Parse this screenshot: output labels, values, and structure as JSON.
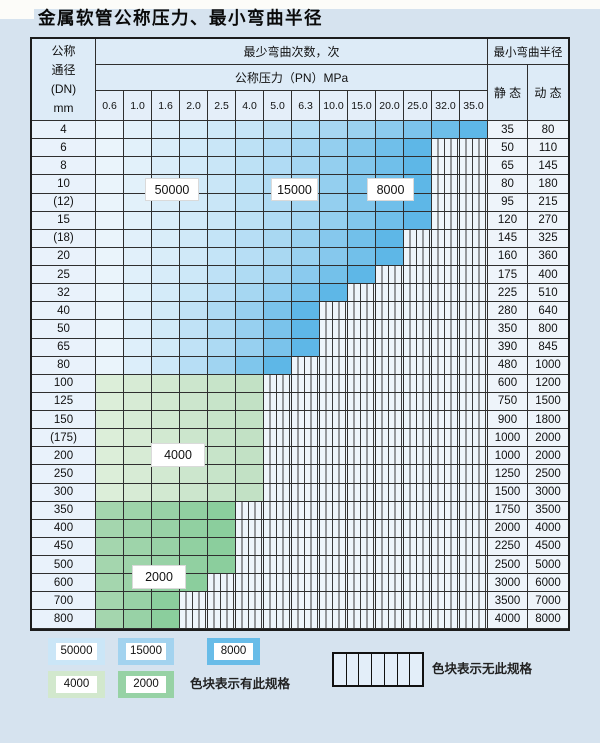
{
  "page_title": "金属软管公称压力、最小弯曲半径",
  "table": {
    "header": {
      "dn_lines": [
        "公称",
        "通径",
        "(DN)",
        "mm"
      ],
      "bend_cycles": "最少弯曲次数，次",
      "pressure": "公称压力（PN）MPa",
      "radius": "最小弯曲半径",
      "static": "静 态",
      "dynamic": "动 态"
    },
    "pn_columns": [
      "0.6",
      "1.0",
      "1.6",
      "2.0",
      "2.5",
      "4.0",
      "5.0",
      "6.3",
      "10.0",
      "15.0",
      "20.0",
      "25.0",
      "32.0",
      "35.0"
    ],
    "rows": [
      {
        "dn": "4",
        "max_pn": "35.0",
        "zone": "blue",
        "static": "35",
        "dynamic": "80"
      },
      {
        "dn": "6",
        "max_pn": "25.0",
        "zone": "blue",
        "static": "50",
        "dynamic": "110"
      },
      {
        "dn": "8",
        "max_pn": "25.0",
        "zone": "blue",
        "static": "65",
        "dynamic": "145"
      },
      {
        "dn": "10",
        "max_pn": "25.0",
        "zone": "blue",
        "static": "80",
        "dynamic": "180"
      },
      {
        "dn": "(12)",
        "max_pn": "25.0",
        "zone": "blue",
        "static": "95",
        "dynamic": "215"
      },
      {
        "dn": "15",
        "max_pn": "25.0",
        "zone": "blue",
        "static": "120",
        "dynamic": "270"
      },
      {
        "dn": "(18)",
        "max_pn": "20.0",
        "zone": "blue",
        "static": "145",
        "dynamic": "325"
      },
      {
        "dn": "20",
        "max_pn": "20.0",
        "zone": "blue",
        "static": "160",
        "dynamic": "360"
      },
      {
        "dn": "25",
        "max_pn": "15.0",
        "zone": "blue",
        "static": "175",
        "dynamic": "400"
      },
      {
        "dn": "32",
        "max_pn": "10.0",
        "zone": "blue",
        "static": "225",
        "dynamic": "510"
      },
      {
        "dn": "40",
        "max_pn": "6.3",
        "zone": "blue",
        "static": "280",
        "dynamic": "640"
      },
      {
        "dn": "50",
        "max_pn": "6.3",
        "zone": "blue",
        "static": "350",
        "dynamic": "800"
      },
      {
        "dn": "65",
        "max_pn": "6.3",
        "zone": "blue",
        "static": "390",
        "dynamic": "845"
      },
      {
        "dn": "80",
        "max_pn": "5.0",
        "zone": "blue",
        "static": "480",
        "dynamic": "1000"
      },
      {
        "dn": "100",
        "max_pn": "4.0",
        "zone": "4000",
        "static": "600",
        "dynamic": "1200"
      },
      {
        "dn": "125",
        "max_pn": "4.0",
        "zone": "4000",
        "static": "750",
        "dynamic": "1500"
      },
      {
        "dn": "150",
        "max_pn": "4.0",
        "zone": "4000",
        "static": "900",
        "dynamic": "1800"
      },
      {
        "dn": "(175)",
        "max_pn": "4.0",
        "zone": "4000",
        "static": "1000",
        "dynamic": "2000"
      },
      {
        "dn": "200",
        "max_pn": "4.0",
        "zone": "4000",
        "static": "1000",
        "dynamic": "2000"
      },
      {
        "dn": "250",
        "max_pn": "4.0",
        "zone": "4000",
        "static": "1250",
        "dynamic": "2500"
      },
      {
        "dn": "300",
        "max_pn": "4.0",
        "zone": "4000",
        "static": "1500",
        "dynamic": "3000"
      },
      {
        "dn": "350",
        "max_pn": "2.5",
        "zone": "2000",
        "static": "1750",
        "dynamic": "3500"
      },
      {
        "dn": "400",
        "max_pn": "2.5",
        "zone": "2000",
        "static": "2000",
        "dynamic": "4000"
      },
      {
        "dn": "450",
        "max_pn": "2.5",
        "zone": "2000",
        "static": "2250",
        "dynamic": "4500"
      },
      {
        "dn": "500",
        "max_pn": "2.5",
        "zone": "2000",
        "static": "2500",
        "dynamic": "5000"
      },
      {
        "dn": "600",
        "max_pn": "2.0",
        "zone": "2000",
        "static": "3000",
        "dynamic": "6000"
      },
      {
        "dn": "700",
        "max_pn": "1.6",
        "zone": "2000",
        "static": "3500",
        "dynamic": "7000"
      },
      {
        "dn": "800",
        "max_pn": "1.6",
        "zone": "2000",
        "static": "4000",
        "dynamic": "8000"
      }
    ]
  },
  "zone_labels": [
    {
      "label": "50000"
    },
    {
      "label": "15000"
    },
    {
      "label": "8000"
    },
    {
      "label": "4000"
    },
    {
      "label": "2000"
    }
  ],
  "legend": {
    "has_spec_items": [
      {
        "value": "50000",
        "color": "#cbe6f7"
      },
      {
        "value": "15000",
        "color": "#a3d3ef"
      },
      {
        "value": "8000",
        "color": "#68bce8"
      },
      {
        "value": "4000",
        "color": "#d2e8cd"
      },
      {
        "value": "2000",
        "color": "#97d2a5"
      }
    ],
    "has_spec_text": "色块表示有此规格",
    "no_spec_text": "色块表示无此规格"
  },
  "colors": {
    "page_bg": "#d6e3ef",
    "header_bg": "#ddebf7",
    "grid_line": "#2f2f2f",
    "no_spec_bg": "#eef5fb",
    "blue_ramp": [
      "#eaf4fb",
      "#cde8f8",
      "#a0d4f1",
      "#5eb7e7"
    ],
    "green_4000_ramp": [
      "#dceed9",
      "#c2e1c5"
    ],
    "green_2000_ramp": [
      "#a4d6ae",
      "#8bce9d"
    ]
  }
}
